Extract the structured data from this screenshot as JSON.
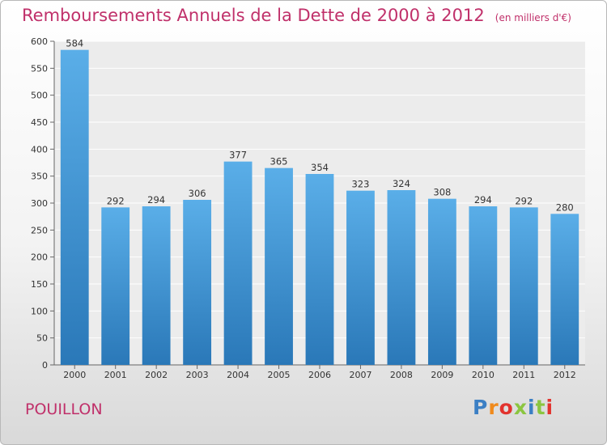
{
  "header": {
    "title": "Remboursements Annuels de la Dette de 2000 à 2012",
    "unit": "(en milliers d'€)"
  },
  "footer": {
    "commune": "POUILLON",
    "logo_text": "Proxiti"
  },
  "colors": {
    "bar_light": "#5aaee8",
    "bar_dark": "#2a78b8",
    "title": "#c0306a",
    "logo": [
      "#3b7fc4",
      "#f08a1c",
      "#e2332e",
      "#8bc540",
      "#3b7fc4",
      "#8bc540",
      "#e2332e"
    ]
  },
  "chart_data": {
    "type": "bar",
    "title": "Remboursements Annuels de la Dette de 2000 à 2012",
    "xlabel": "",
    "ylabel": "",
    "categories": [
      "2000",
      "2001",
      "2002",
      "2003",
      "2004",
      "2005",
      "2006",
      "2007",
      "2008",
      "2009",
      "2010",
      "2011",
      "2012"
    ],
    "values": [
      584,
      292,
      294,
      306,
      377,
      365,
      354,
      323,
      324,
      308,
      294,
      292,
      280
    ],
    "ylim": [
      0,
      600
    ],
    "yticks": [
      0,
      50,
      100,
      150,
      200,
      250,
      300,
      350,
      400,
      450,
      500,
      550,
      600
    ],
    "grid": true,
    "data_labels": true
  }
}
